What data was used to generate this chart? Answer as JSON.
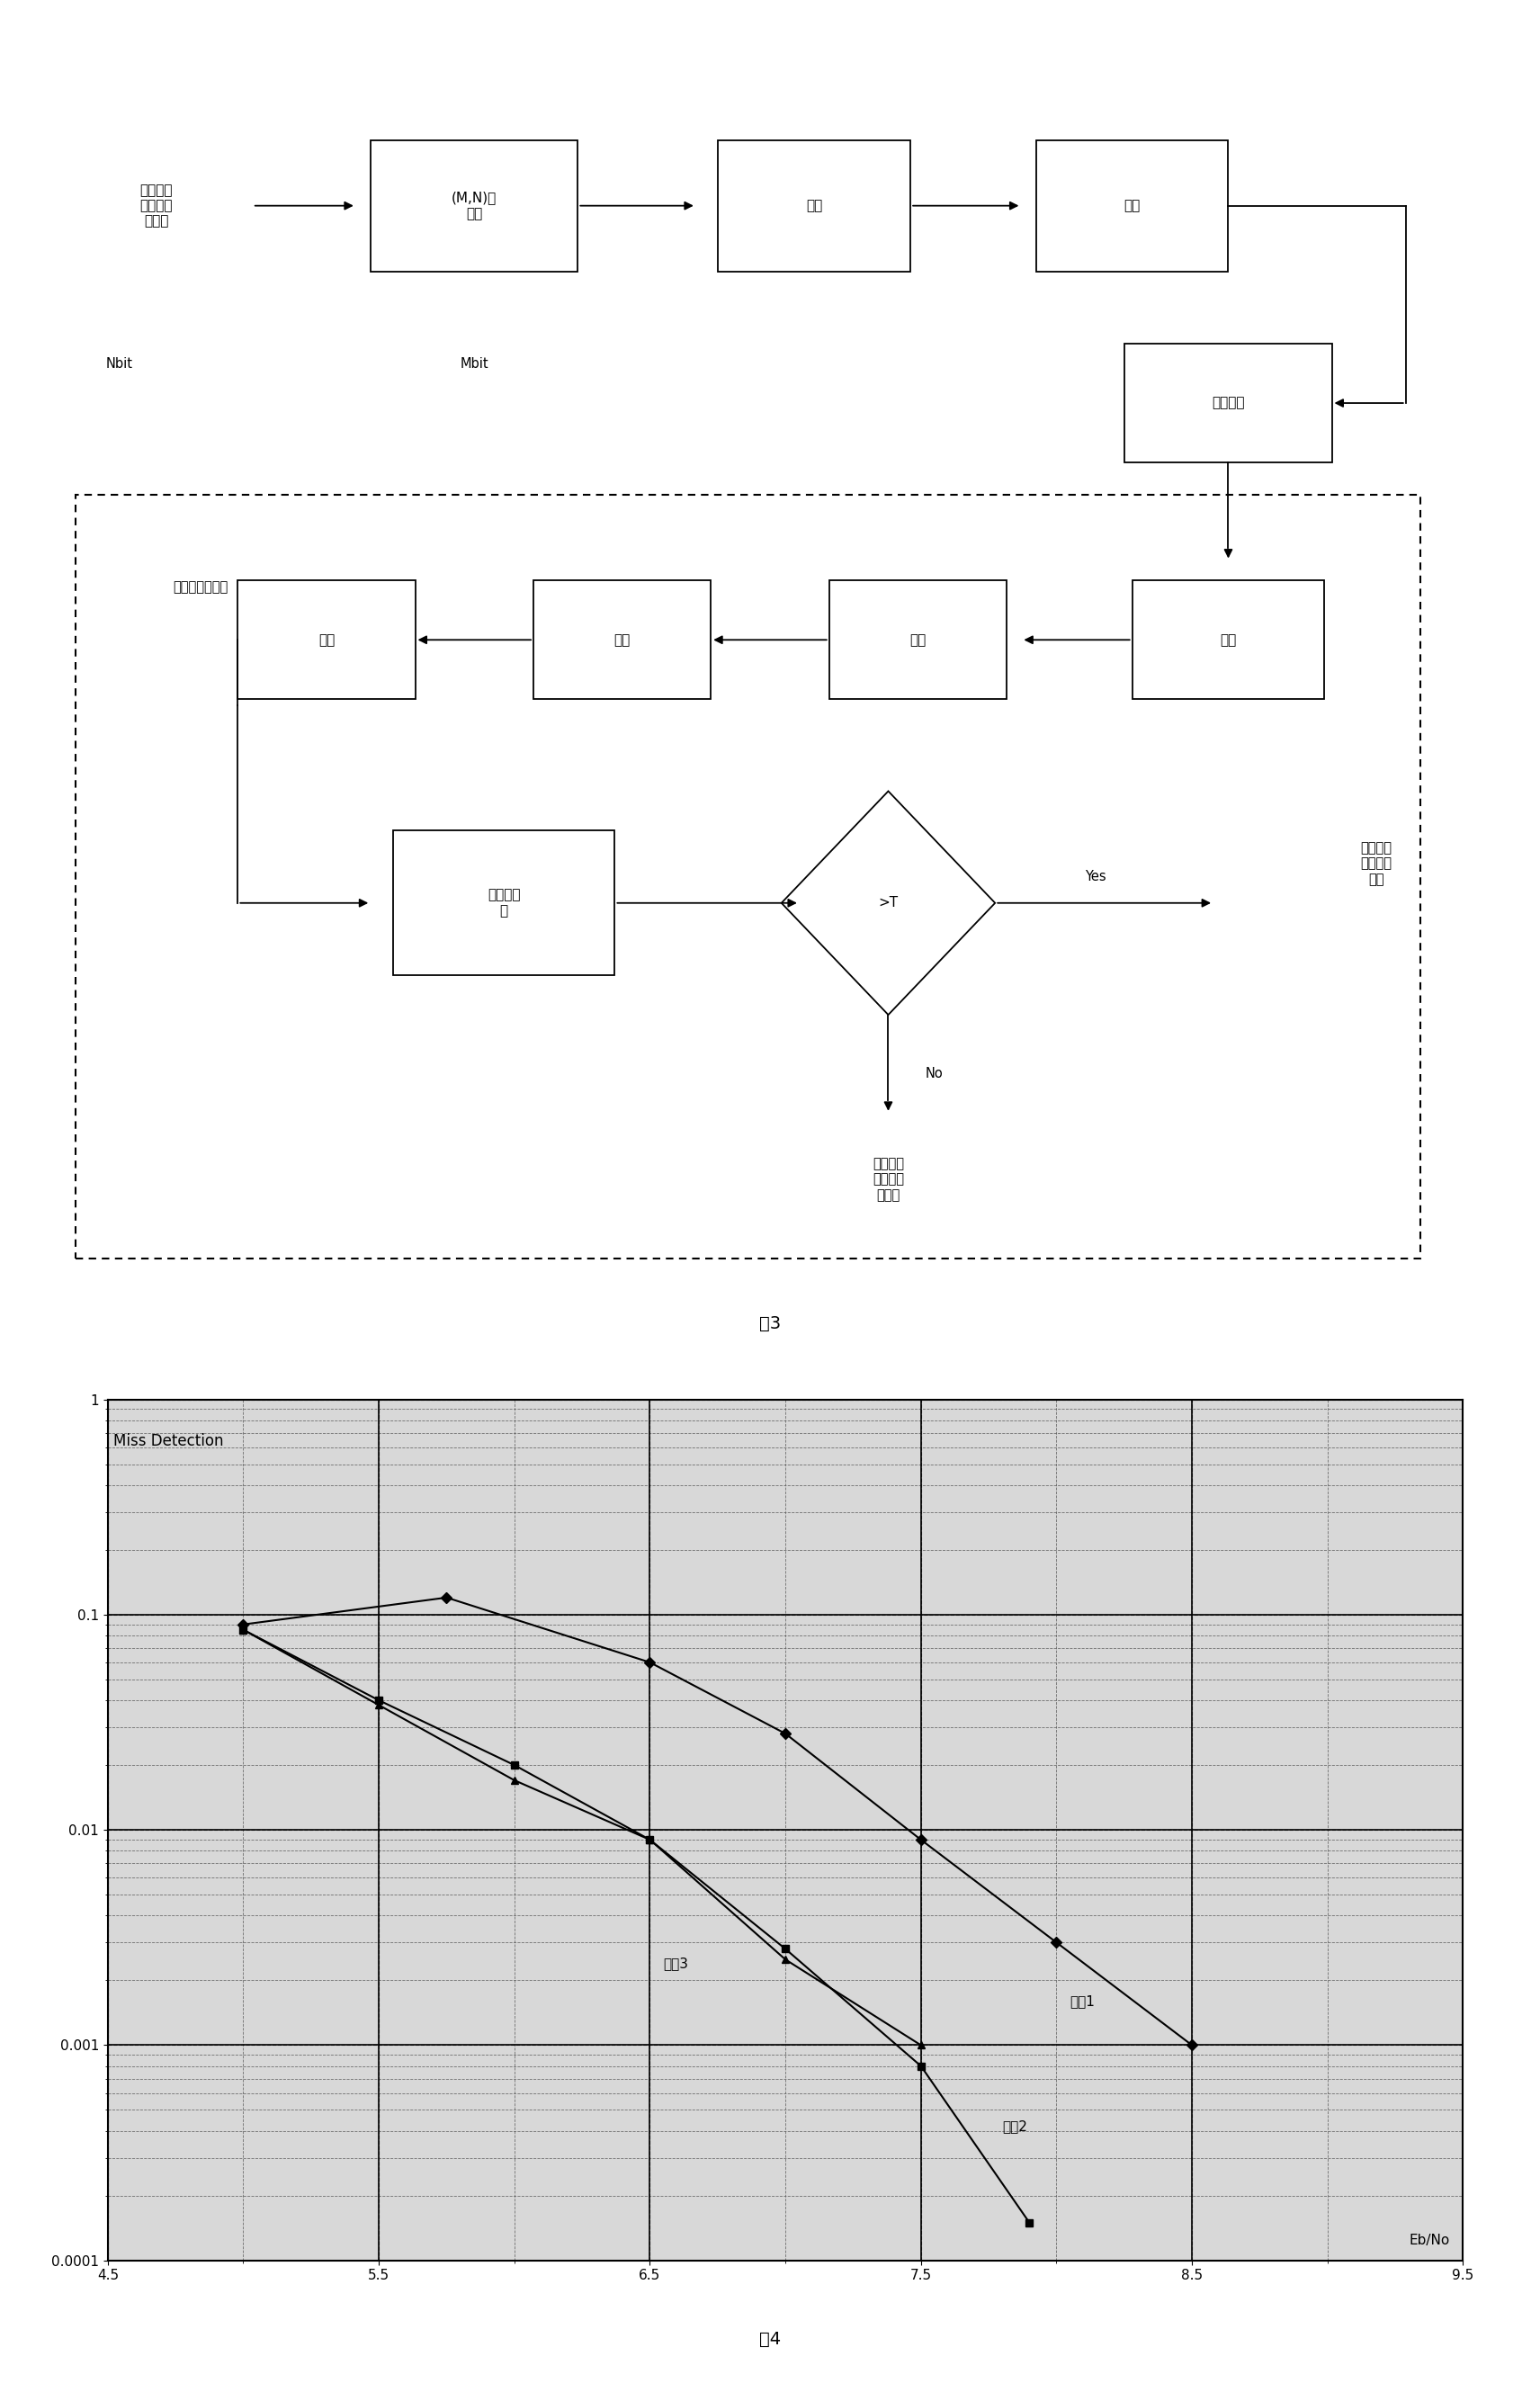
{
  "fig3_title": "图3",
  "fig4_title": "图4",
  "background_color": "#ffffff",
  "top_flow": {
    "start_label": "物理信道\n传输的信\n息比特",
    "nbit_label": "Nbit",
    "box1_label": "(M,N)块\n编码",
    "mbit_label": "Mbit",
    "box2_label": "扩频",
    "box3_label": "加扰",
    "box4_label": "无线信道"
  },
  "bottom_flow": {
    "left_label": "最大译码打分値",
    "box_decode": "译码",
    "box_correct": "纠偏",
    "box_despread": "解扩",
    "box_descramble": "解扰",
    "box_energy": "平方求能\n量",
    "diamond_label": ">T",
    "yes_label": "Yes",
    "no_label": "No",
    "output_yes": "物理信道\n存在信息\n比特",
    "output_no": "物理信道\n不存在信\n息比特"
  },
  "chart": {
    "title": "Miss Detection",
    "xlabel": "Eb/No",
    "xlim": [
      4.5,
      9.5
    ],
    "ylim_log": [
      0.0001,
      1
    ],
    "yticks": [
      1,
      0.1,
      0.01,
      0.001,
      0.0001
    ],
    "ytick_labels": [
      "1",
      "0.1",
      "0.01",
      "0.001",
      "0.0001"
    ],
    "xticks": [
      4.5,
      5.5,
      6.5,
      7.5,
      8.5,
      9.5
    ],
    "curve1_x": [
      5.0,
      5.75,
      6.5,
      7.0,
      7.5,
      8.0,
      8.5
    ],
    "curve1_y": [
      0.09,
      0.12,
      0.06,
      0.028,
      0.009,
      0.003,
      0.001
    ],
    "curve2_x": [
      5.0,
      5.5,
      6.0,
      6.5,
      7.0,
      7.5,
      7.9
    ],
    "curve2_y": [
      0.085,
      0.04,
      0.02,
      0.009,
      0.0028,
      0.0008,
      0.00015
    ],
    "curve3_x": [
      5.0,
      5.5,
      6.0,
      6.5,
      7.0,
      7.5
    ],
    "curve3_y": [
      0.085,
      0.038,
      0.017,
      0.009,
      0.0025,
      0.001
    ],
    "curve1_label": "曲线1",
    "curve2_label": "曲线2",
    "curve3_label": "曲线3",
    "bg_color": "#d8d8d8"
  }
}
